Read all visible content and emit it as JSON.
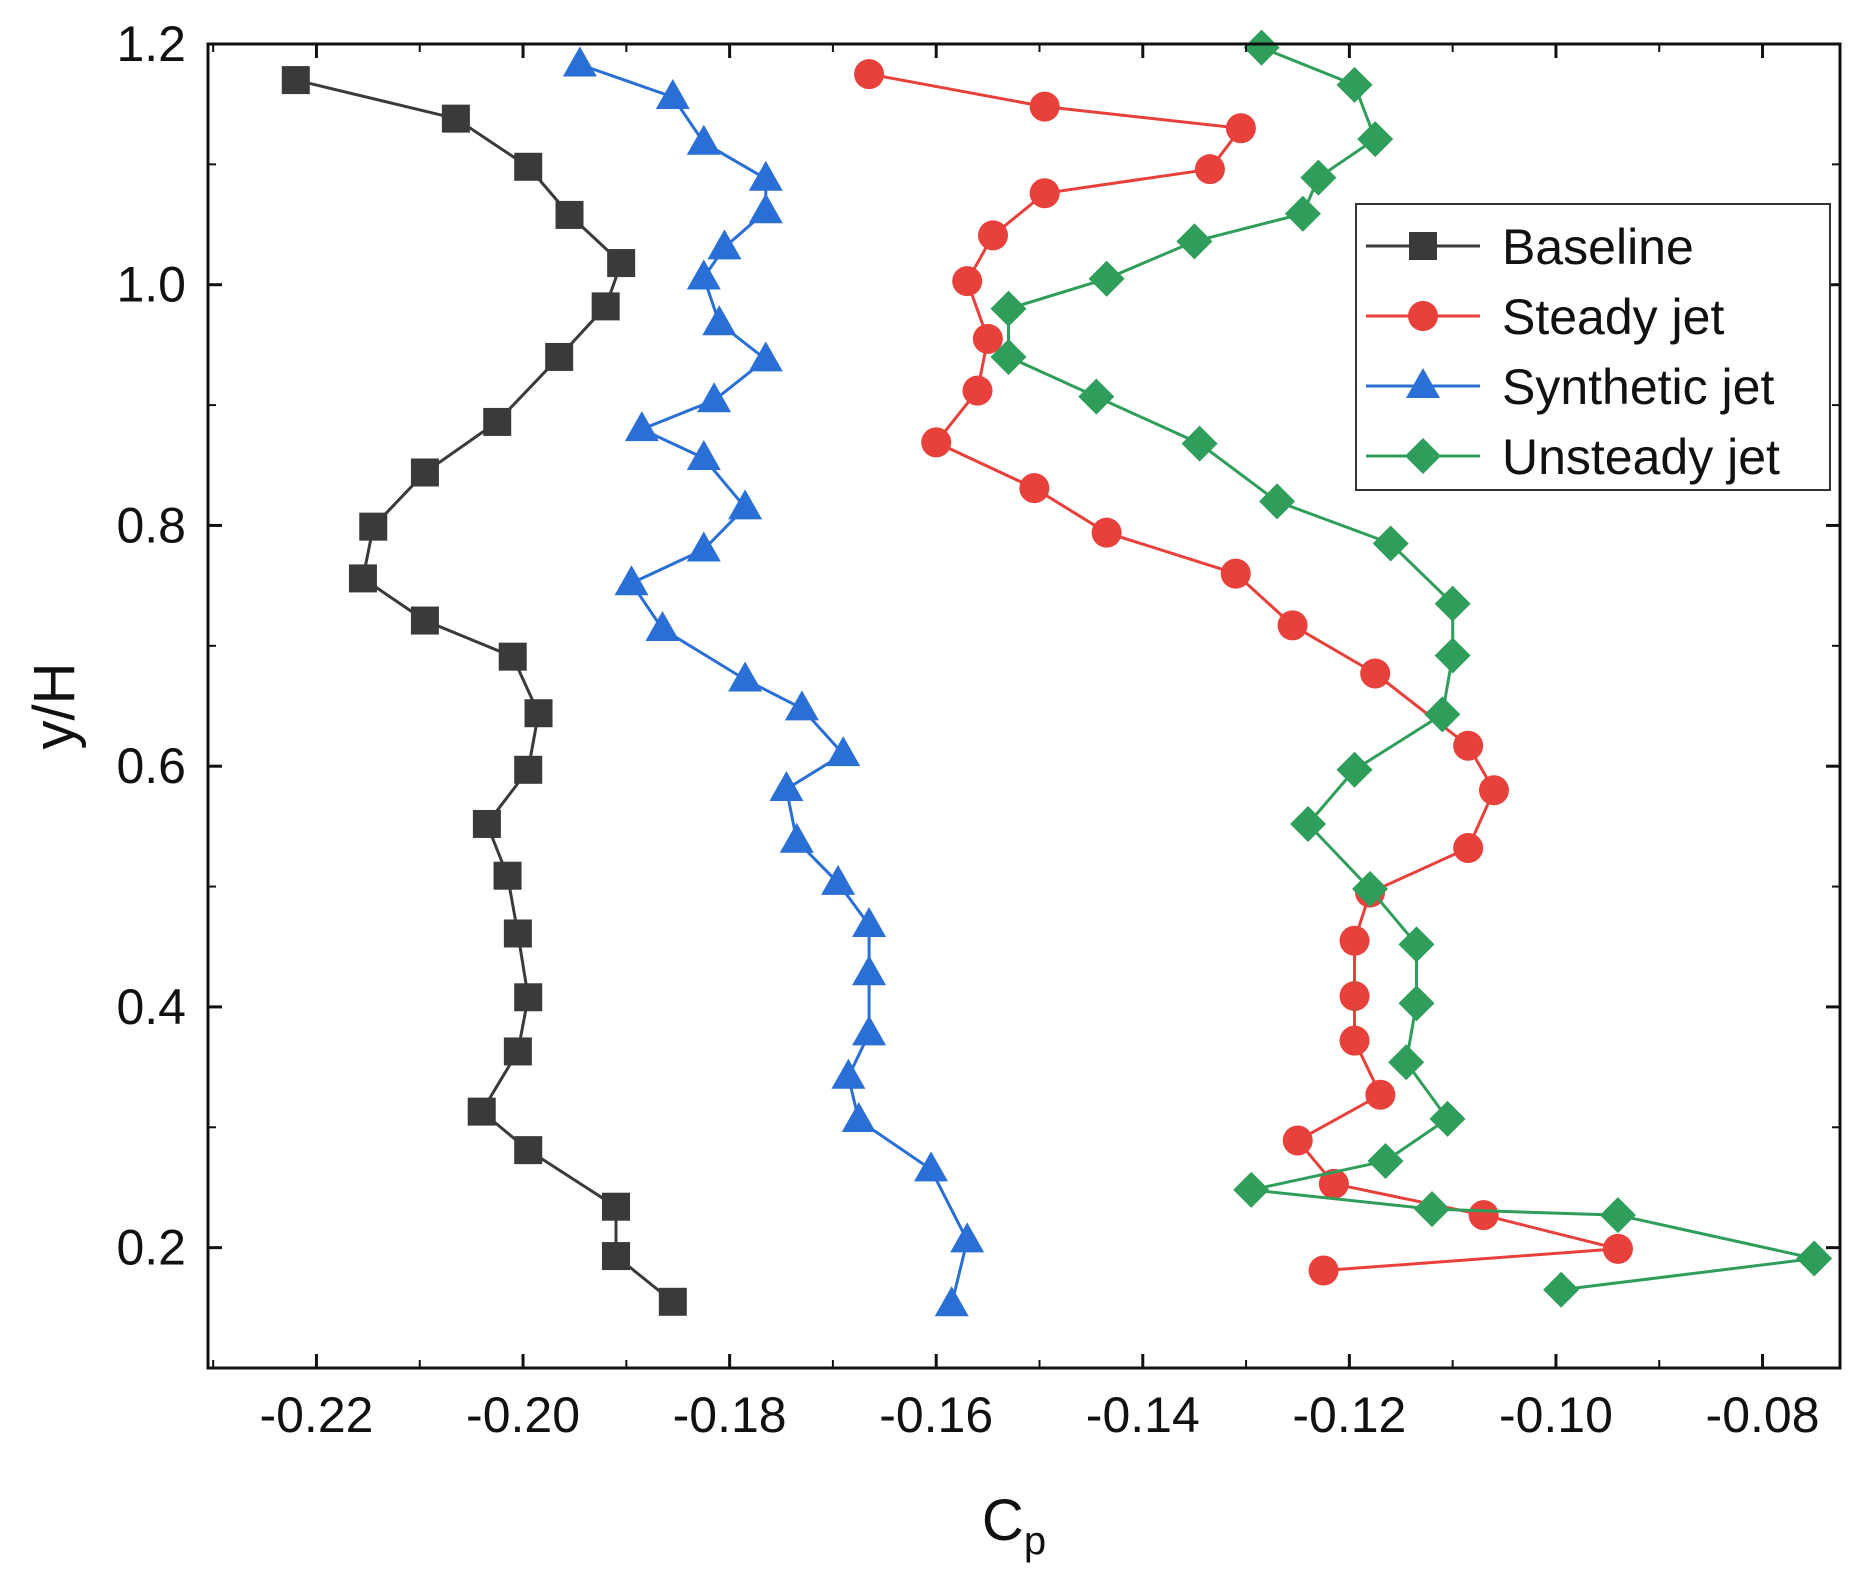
{
  "chart_data": {
    "type": "line",
    "title": "",
    "xlabel_main": "C",
    "xlabel_sub": "p",
    "ylabel": "y/H",
    "xlim": [
      -0.2305,
      -0.0725
    ],
    "ylim": [
      0.1,
      1.2
    ],
    "xticks": [
      -0.22,
      -0.2,
      -0.18,
      -0.16,
      -0.14,
      -0.12,
      -0.1,
      -0.08
    ],
    "xtick_labels": [
      "-0.22",
      "-0.20",
      "-0.18",
      "-0.16",
      "-0.14",
      "-0.12",
      "-0.10",
      "-0.08"
    ],
    "yticks": [
      0.2,
      0.4,
      0.6,
      0.8,
      1.0,
      1.2
    ],
    "ytick_labels": [
      "0.2",
      "0.4",
      "0.6",
      "0.8",
      "1.0",
      "1.2"
    ],
    "grid": false,
    "legend_position": "top-right",
    "series": [
      {
        "name": "Baseline",
        "color": "#3a3a3a",
        "marker": "square",
        "points": [
          [
            -0.222,
            1.17
          ],
          [
            -0.2065,
            1.138
          ],
          [
            -0.1995,
            1.098
          ],
          [
            -0.1955,
            1.058
          ],
          [
            -0.1905,
            1.018
          ],
          [
            -0.192,
            0.982
          ],
          [
            -0.1965,
            0.94
          ],
          [
            -0.2025,
            0.886
          ],
          [
            -0.2095,
            0.844
          ],
          [
            -0.2145,
            0.799
          ],
          [
            -0.2155,
            0.756
          ],
          [
            -0.2095,
            0.721
          ],
          [
            -0.201,
            0.691
          ],
          [
            -0.1985,
            0.644
          ],
          [
            -0.1995,
            0.597
          ],
          [
            -0.2035,
            0.552
          ],
          [
            -0.2015,
            0.509
          ],
          [
            -0.2005,
            0.461
          ],
          [
            -0.1995,
            0.408
          ],
          [
            -0.2005,
            0.363
          ],
          [
            -0.204,
            0.313
          ],
          [
            -0.1995,
            0.281
          ],
          [
            -0.191,
            0.234
          ],
          [
            -0.191,
            0.193
          ],
          [
            -0.1855,
            0.155
          ]
        ]
      },
      {
        "name": "Steady jet",
        "color": "#e8403b",
        "marker": "circle",
        "points": [
          [
            -0.1665,
            1.175
          ],
          [
            -0.1495,
            1.148
          ],
          [
            -0.1305,
            1.13
          ],
          [
            -0.1335,
            1.096
          ],
          [
            -0.1495,
            1.076
          ],
          [
            -0.1545,
            1.041
          ],
          [
            -0.157,
            1.003
          ],
          [
            -0.155,
            0.955
          ],
          [
            -0.156,
            0.912
          ],
          [
            -0.16,
            0.869
          ],
          [
            -0.1505,
            0.831
          ],
          [
            -0.1435,
            0.794
          ],
          [
            -0.131,
            0.76
          ],
          [
            -0.1255,
            0.717
          ],
          [
            -0.1175,
            0.677
          ],
          [
            -0.1085,
            0.617
          ],
          [
            -0.106,
            0.58
          ],
          [
            -0.1085,
            0.532
          ],
          [
            -0.118,
            0.495
          ],
          [
            -0.1195,
            0.455
          ],
          [
            -0.1195,
            0.409
          ],
          [
            -0.1195,
            0.372
          ],
          [
            -0.117,
            0.327
          ],
          [
            -0.125,
            0.289
          ],
          [
            -0.1215,
            0.253
          ],
          [
            -0.107,
            0.227
          ],
          [
            -0.094,
            0.199
          ],
          [
            -0.1225,
            0.181
          ]
        ]
      },
      {
        "name": "Synthetic jet",
        "color": "#2a6fd6",
        "marker": "triangle",
        "points": [
          [
            -0.1945,
            1.183
          ],
          [
            -0.1855,
            1.156
          ],
          [
            -0.1825,
            1.118
          ],
          [
            -0.1765,
            1.088
          ],
          [
            -0.1765,
            1.061
          ],
          [
            -0.1805,
            1.031
          ],
          [
            -0.1825,
            1.006
          ],
          [
            -0.181,
            0.968
          ],
          [
            -0.1765,
            0.938
          ],
          [
            -0.1815,
            0.904
          ],
          [
            -0.1885,
            0.88
          ],
          [
            -0.1825,
            0.856
          ],
          [
            -0.1785,
            0.815
          ],
          [
            -0.1825,
            0.78
          ],
          [
            -0.1895,
            0.752
          ],
          [
            -0.1865,
            0.714
          ],
          [
            -0.1785,
            0.672
          ],
          [
            -0.173,
            0.648
          ],
          [
            -0.169,
            0.61
          ],
          [
            -0.1745,
            0.581
          ],
          [
            -0.1735,
            0.538
          ],
          [
            -0.1695,
            0.503
          ],
          [
            -0.1665,
            0.468
          ],
          [
            -0.1665,
            0.428
          ],
          [
            -0.1665,
            0.378
          ],
          [
            -0.1685,
            0.342
          ],
          [
            -0.1675,
            0.306
          ],
          [
            -0.1605,
            0.265
          ],
          [
            -0.157,
            0.206
          ],
          [
            -0.1585,
            0.153
          ]
        ]
      },
      {
        "name": "Unsteady jet",
        "color": "#2f9e5b",
        "marker": "diamond",
        "points": [
          [
            -0.1285,
            1.197
          ],
          [
            -0.1195,
            1.166
          ],
          [
            -0.1175,
            1.121
          ],
          [
            -0.123,
            1.089
          ],
          [
            -0.1245,
            1.059
          ],
          [
            -0.135,
            1.036
          ],
          [
            -0.1435,
            1.005
          ],
          [
            -0.153,
            0.98
          ],
          [
            -0.153,
            0.94
          ],
          [
            -0.1445,
            0.907
          ],
          [
            -0.1345,
            0.868
          ],
          [
            -0.127,
            0.82
          ],
          [
            -0.116,
            0.785
          ],
          [
            -0.11,
            0.735
          ],
          [
            -0.11,
            0.692
          ],
          [
            -0.111,
            0.643
          ],
          [
            -0.1195,
            0.597
          ],
          [
            -0.124,
            0.552
          ],
          [
            -0.118,
            0.498
          ],
          [
            -0.1135,
            0.452
          ],
          [
            -0.1135,
            0.403
          ],
          [
            -0.1145,
            0.354
          ],
          [
            -0.1105,
            0.307
          ],
          [
            -0.1165,
            0.272
          ],
          [
            -0.1295,
            0.248
          ],
          [
            -0.112,
            0.232
          ],
          [
            -0.094,
            0.227
          ],
          [
            -0.075,
            0.191
          ],
          [
            -0.0995,
            0.165
          ]
        ]
      }
    ]
  }
}
